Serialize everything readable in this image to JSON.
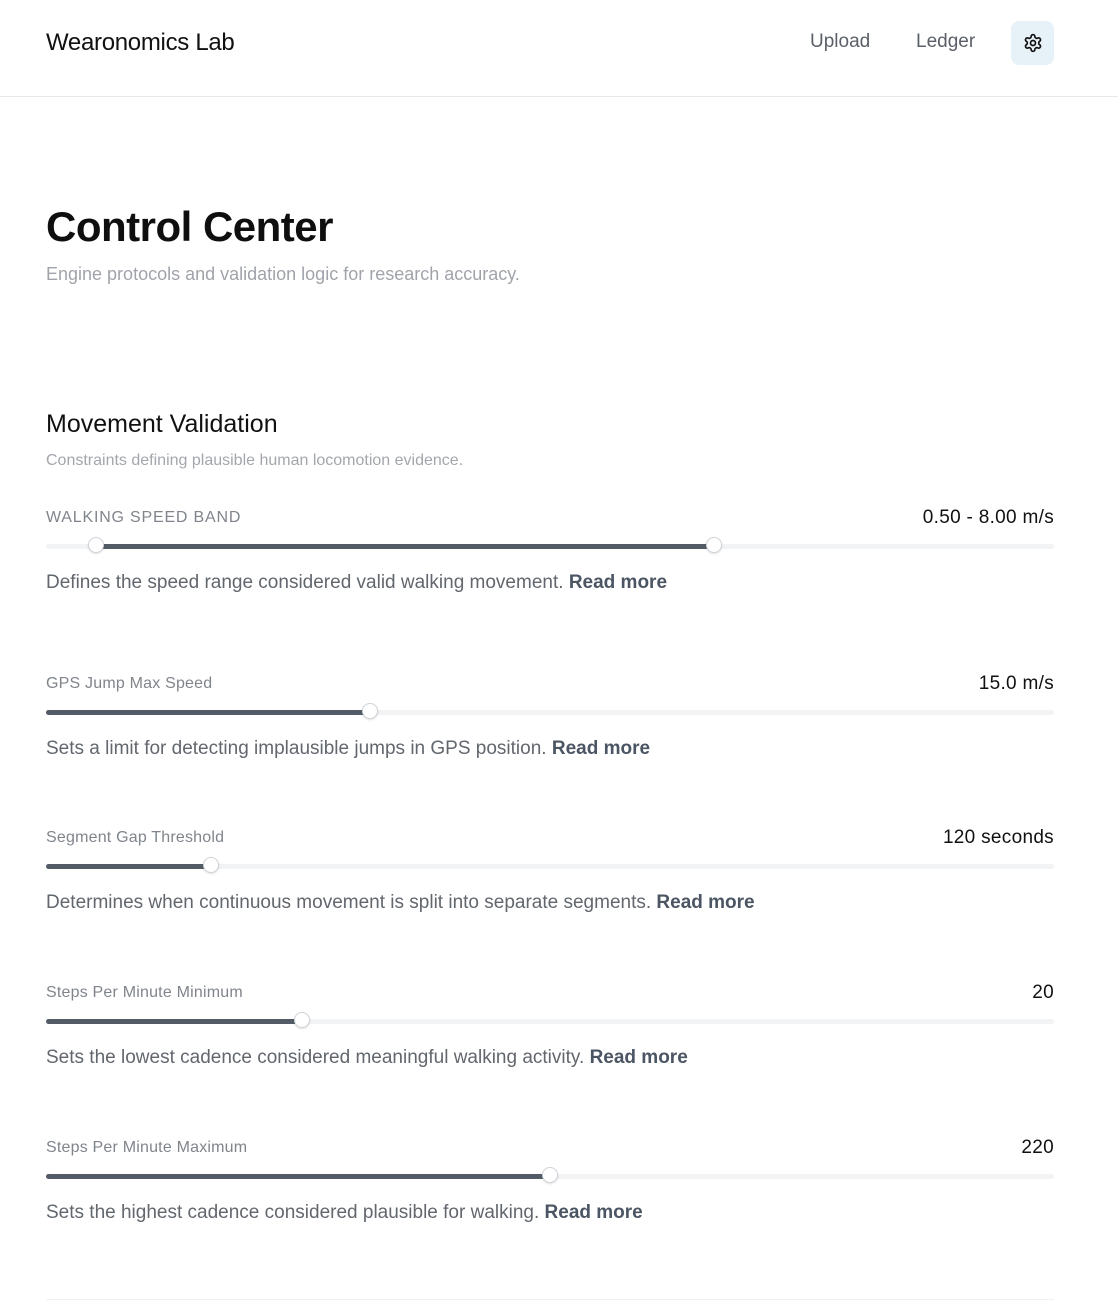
{
  "header": {
    "brand": "Wearonomics Lab",
    "nav": [
      {
        "label": "Upload"
      },
      {
        "label": "Ledger"
      }
    ],
    "settings_icon": "gear-icon",
    "settings_bg": "#e7f2f8"
  },
  "page": {
    "title": "Control Center",
    "subtitle": "Engine protocols and validation logic for research accuracy."
  },
  "section": {
    "title": "Movement Validation",
    "description": "Constraints defining plausible human locomotion evidence."
  },
  "settings": [
    {
      "label": "WALKING SPEED BAND",
      "value": "0.50 - 8.00 m/s",
      "description": "Defines the speed range considered valid walking movement.",
      "read_more": "Read more",
      "range": [
        0.05,
        0.663
      ]
    },
    {
      "label": "GPS Jump Max Speed",
      "value": "15.0 m/s",
      "description": "Sets a limit for detecting implausible jumps in GPS position.",
      "read_more": "Read more",
      "level": 0.321
    },
    {
      "label": "Segment Gap Threshold",
      "value": "120 seconds",
      "description": "Determines when continuous movement is split into separate segments.",
      "read_more": "Read more",
      "level": 0.164
    },
    {
      "label": "Steps Per Minute Minimum",
      "value": "20",
      "description": "Sets the lowest cadence considered meaningful walking activity.",
      "read_more": "Read more",
      "level": 0.254
    },
    {
      "label": "Steps Per Minute Maximum",
      "value": "220",
      "description": "Sets the highest cadence considered plausible for walking.",
      "read_more": "Read more",
      "level": 0.5
    }
  ],
  "colors": {
    "slider_fill": "#535b66",
    "slider_track": "#f2f3f5"
  }
}
